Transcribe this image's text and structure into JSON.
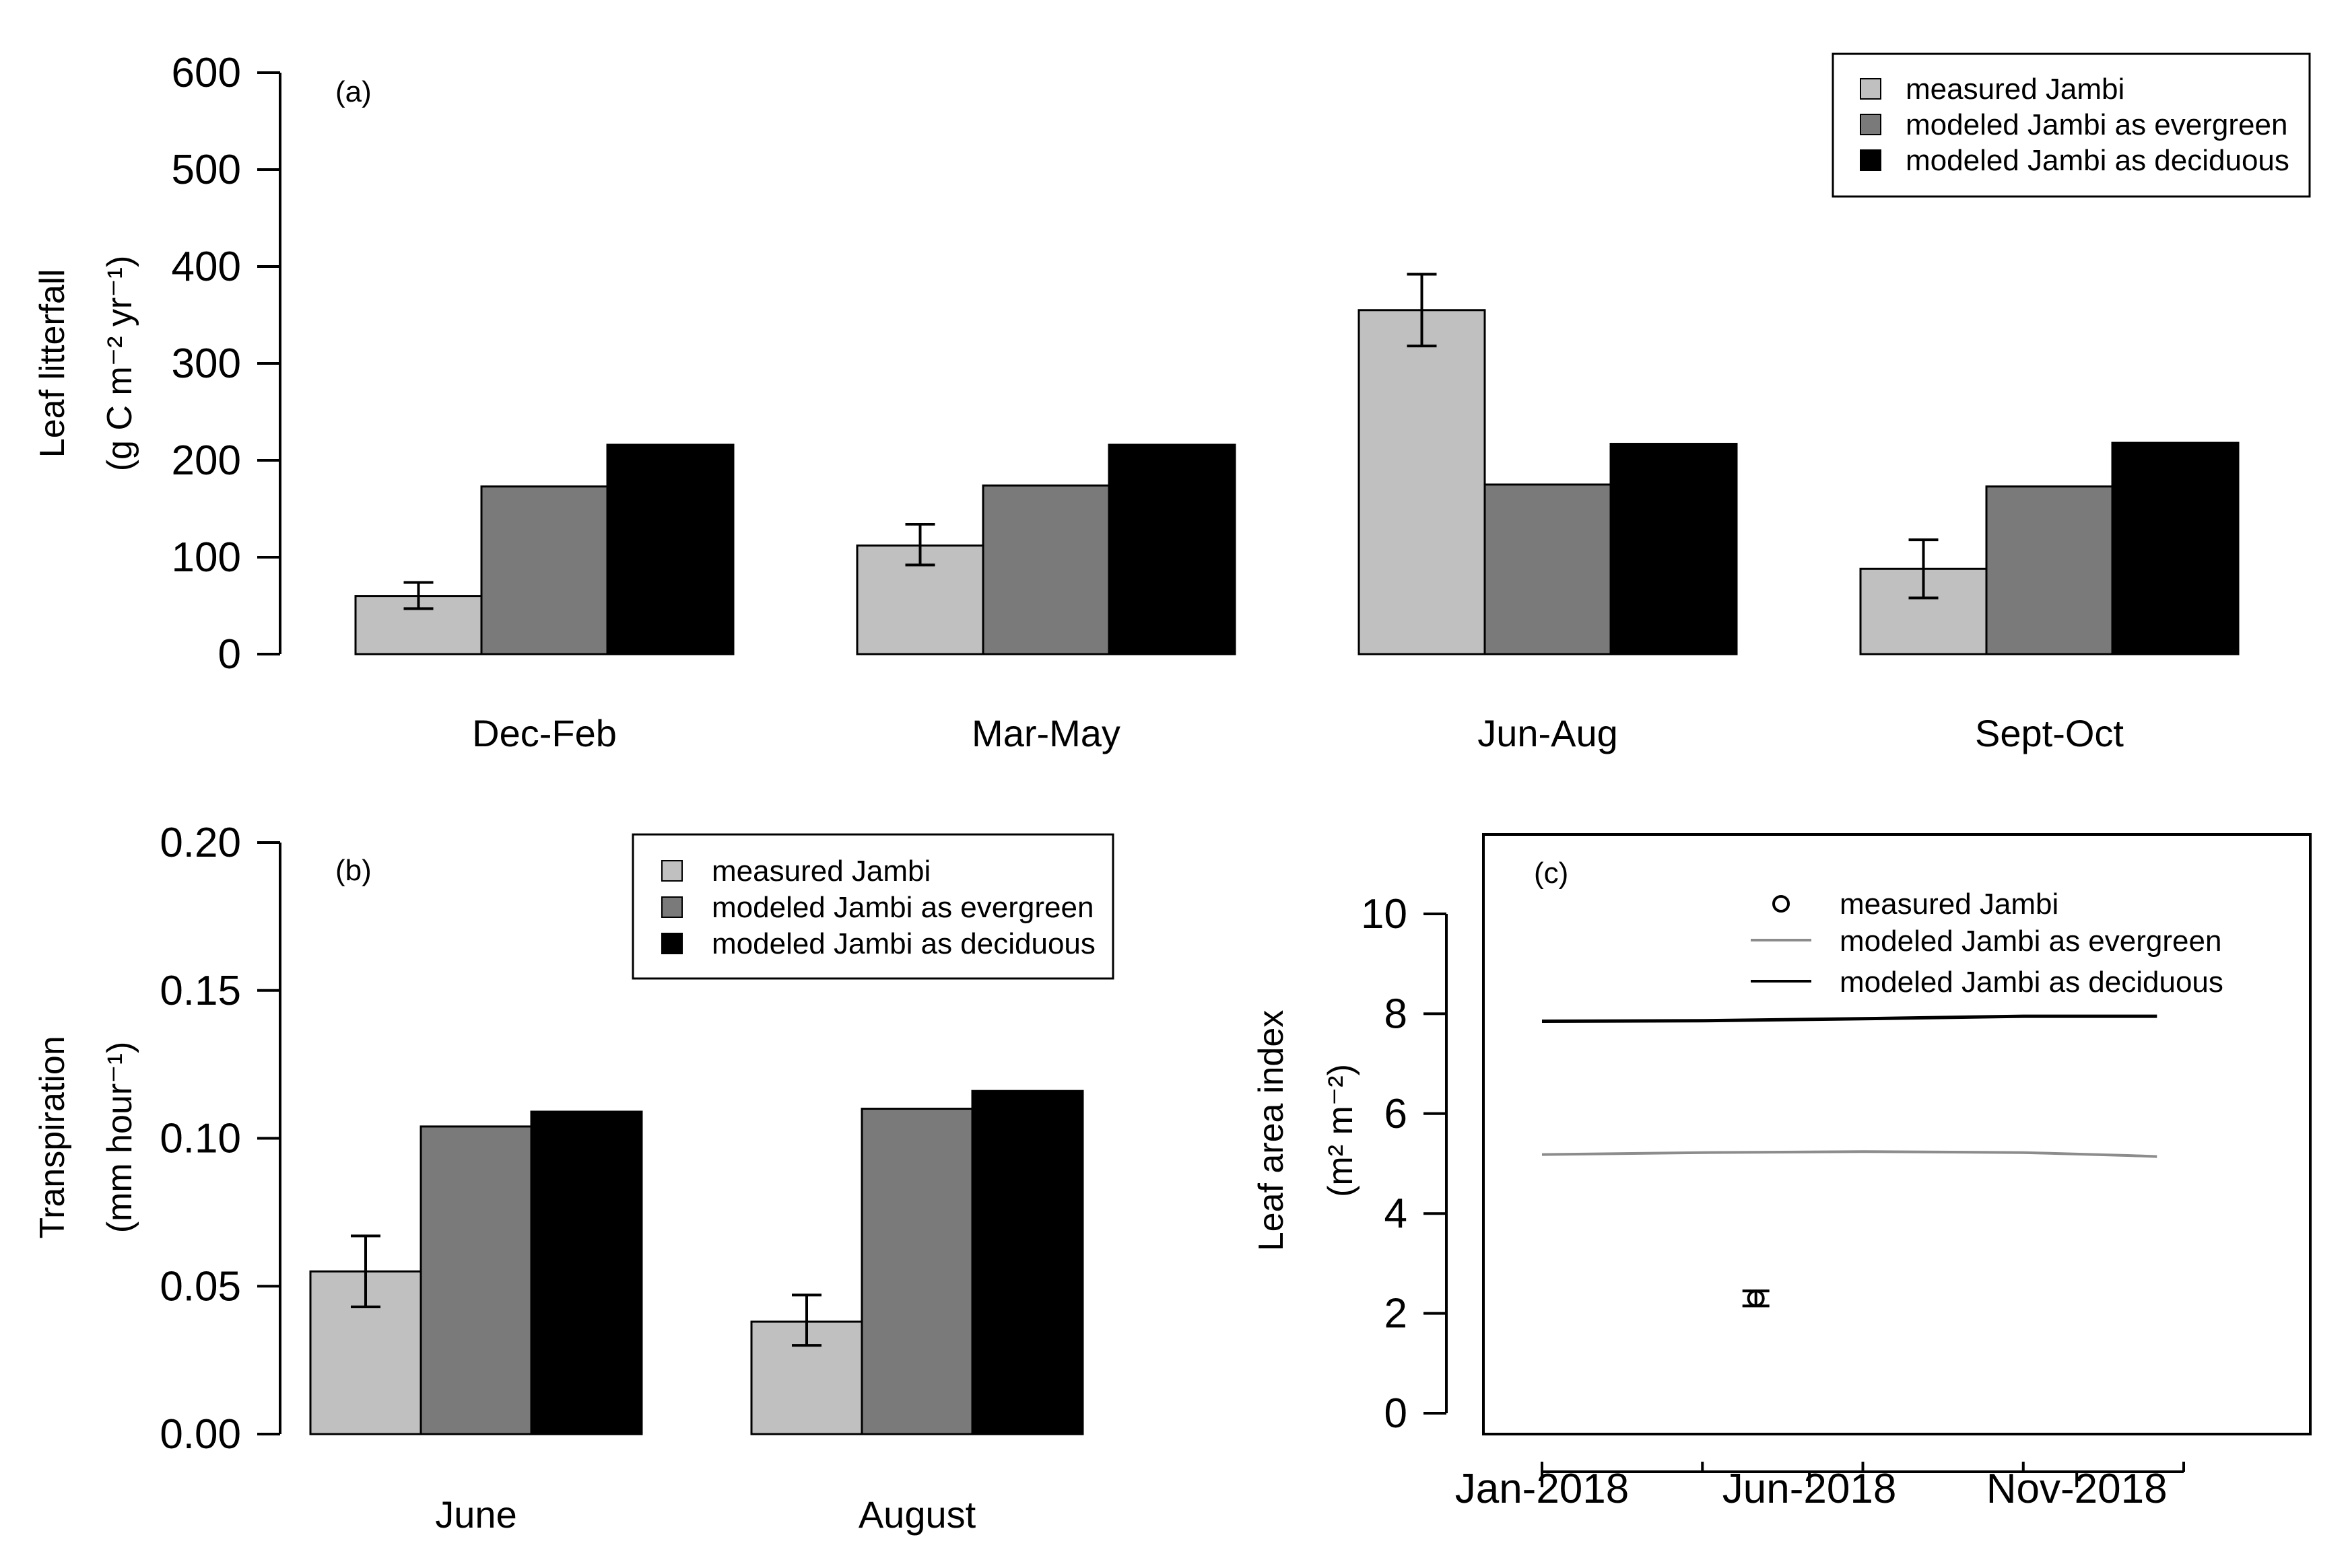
{
  "chart_data": [
    {
      "panel": "(a)",
      "type": "bar",
      "ylabel_line1": "Leaf litterfall",
      "ylabel_line2": "(g C m⁻² yr⁻¹)",
      "ylim": [
        0,
        600
      ],
      "yticks": [
        "0",
        "100",
        "200",
        "300",
        "400",
        "500",
        "600"
      ],
      "categories": [
        "Dec-Feb",
        "Mar-May",
        "Jun-Aug",
        "Sept-Oct"
      ],
      "series": [
        {
          "name": "measured Jambi",
          "color": "#c0c0c0",
          "values": [
            60,
            112,
            355,
            88
          ],
          "err_low": [
            47,
            92,
            318,
            58
          ],
          "err_high": [
            74,
            134,
            392,
            118
          ]
        },
        {
          "name": "modeled Jambi as evergreen",
          "color": "#7a7a7a",
          "values": [
            173,
            174,
            175,
            173
          ]
        },
        {
          "name": "modeled Jambi as deciduous",
          "color": "#000000",
          "values": [
            216,
            216,
            217,
            218
          ]
        }
      ],
      "legend": [
        "measured Jambi",
        "modeled Jambi as evergreen",
        "modeled Jambi as deciduous"
      ]
    },
    {
      "panel": "(b)",
      "type": "bar",
      "ylabel_line1": "Transpiration",
      "ylabel_line2": "(mm hour⁻¹)",
      "ylim": [
        0,
        0.2
      ],
      "yticks": [
        "0.00",
        "0.05",
        "0.10",
        "0.15",
        "0.20"
      ],
      "categories": [
        "June",
        "August"
      ],
      "series": [
        {
          "name": "measured Jambi",
          "color": "#c0c0c0",
          "values": [
            0.055,
            0.038
          ],
          "err_low": [
            0.043,
            0.03
          ],
          "err_high": [
            0.067,
            0.047
          ]
        },
        {
          "name": "modeled Jambi as evergreen",
          "color": "#7a7a7a",
          "values": [
            0.104,
            0.11
          ]
        },
        {
          "name": "modeled Jambi as deciduous",
          "color": "#000000",
          "values": [
            0.109,
            0.116
          ]
        }
      ],
      "legend": [
        "measured Jambi",
        "modeled Jambi as evergreen",
        "modeled Jambi as deciduous"
      ]
    },
    {
      "panel": "(c)",
      "type": "line",
      "ylabel_line1": "Leaf area index",
      "ylabel_line2": "(m² m⁻²)",
      "ylim": [
        -0.5,
        11.5
      ],
      "yticks": [
        "0",
        "2",
        "4",
        "6",
        "8",
        "10"
      ],
      "xlim": [
        0,
        12
      ],
      "xticks": [
        "Jan-2018",
        "Jun-2018",
        "Nov-2018"
      ],
      "series": [
        {
          "name": "modeled Jambi as evergreen",
          "color": "#8c8c8c",
          "x": [
            0,
            3,
            6,
            9,
            11,
            11.5
          ],
          "y": [
            5.18,
            5.22,
            5.24,
            5.22,
            5.16,
            5.14
          ]
        },
        {
          "name": "modeled Jambi as deciduous",
          "color": "#000000",
          "x": [
            0,
            3,
            6,
            9,
            11,
            11.5
          ],
          "y": [
            7.85,
            7.86,
            7.9,
            7.95,
            7.95,
            7.95
          ]
        }
      ],
      "points": [
        {
          "name": "measured Jambi",
          "x": 4,
          "y": 2.3,
          "err_low": 2.15,
          "err_high": 2.45
        }
      ],
      "legend": [
        "measured Jambi",
        "modeled Jambi as evergreen",
        "modeled Jambi as deciduous"
      ]
    }
  ]
}
